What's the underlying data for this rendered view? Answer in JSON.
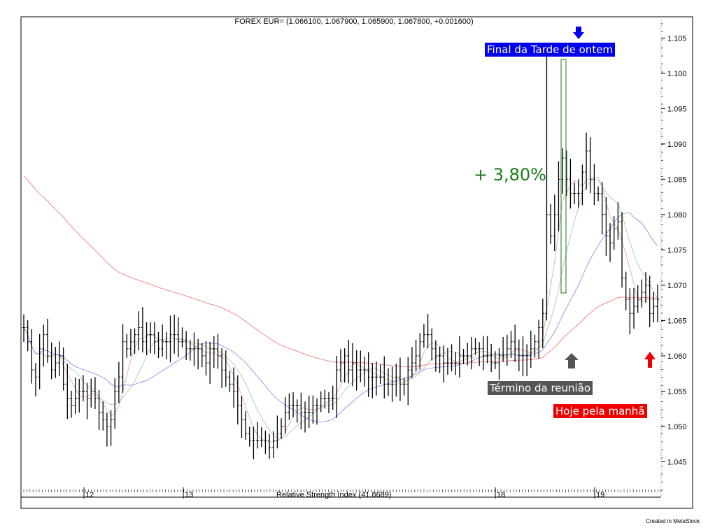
{
  "header": {
    "title": "FOREX EUR= (1.066100, 1.067900, 1.065900, 1.067800, +0.001600)"
  },
  "annotations": {
    "gain": "+ 3,80%",
    "label_final": "Final da Tarde de ontem",
    "label_termino": "Término da reunião",
    "label_hoje": "Hoje pela manhã"
  },
  "indicator_label": "Relative Strength Index (41.8689)",
  "credit": "Created in MetaStock",
  "colors": {
    "gain": "#1a7a1a",
    "final_bg": "#0000ee",
    "termino_bg": "#555555",
    "hoje_bg": "#ee0000",
    "arrow_blue": "#0000ee",
    "arrow_gray": "#555555",
    "arrow_red": "#ee0000"
  },
  "chart_data": {
    "type": "line",
    "subtype": "ohlc_bar",
    "ylim": [
      1.04,
      1.108
    ],
    "y_ticks": [
      "1.045",
      "1.050",
      "1.055",
      "1.060",
      "1.065",
      "1.070",
      "1.075",
      "1.080",
      "1.085",
      "1.090",
      "1.095",
      "1.100",
      "1.105"
    ],
    "x_tick_labels": [
      "12",
      "13",
      "18",
      "19"
    ],
    "series": [
      {
        "role": "price_close",
        "values": [
          1.064,
          1.062,
          1.058,
          1.057,
          1.061,
          1.063,
          1.06,
          1.058,
          1.059,
          1.06,
          1.056,
          1.054,
          1.053,
          1.054,
          1.055,
          1.055,
          1.054,
          1.055,
          1.054,
          1.052,
          1.051,
          1.05,
          1.051,
          1.055,
          1.057,
          1.062,
          1.061,
          1.062,
          1.063,
          1.064,
          1.062,
          1.063,
          1.063,
          1.062,
          1.061,
          1.062,
          1.062,
          1.063,
          1.063,
          1.062,
          1.062,
          1.061,
          1.061,
          1.061,
          1.061,
          1.06,
          1.059,
          1.061,
          1.061,
          1.06,
          1.058,
          1.057,
          1.056,
          1.055,
          1.053,
          1.051,
          1.049,
          1.048,
          1.048,
          1.048,
          1.048,
          1.048,
          1.047,
          1.048,
          1.049,
          1.05,
          1.052,
          1.053,
          1.053,
          1.053,
          1.052,
          1.052,
          1.052,
          1.053,
          1.053,
          1.054,
          1.054,
          1.054,
          1.054,
          1.058,
          1.059,
          1.06,
          1.058,
          1.059,
          1.058,
          1.058,
          1.058,
          1.057,
          1.057,
          1.057,
          1.057,
          1.056,
          1.056,
          1.056,
          1.057,
          1.056,
          1.056,
          1.058,
          1.059,
          1.06,
          1.062,
          1.063,
          1.063,
          1.061,
          1.06,
          1.06,
          1.059,
          1.059,
          1.059,
          1.059,
          1.06,
          1.06,
          1.06,
          1.061,
          1.061,
          1.061,
          1.06,
          1.06,
          1.059,
          1.059,
          1.06,
          1.06,
          1.061,
          1.062,
          1.061,
          1.06,
          1.06,
          1.06,
          1.061,
          1.062,
          1.064,
          1.066,
          1.08,
          1.077,
          1.08,
          1.085,
          1.088,
          1.085,
          1.083,
          1.083,
          1.083,
          1.086,
          1.089,
          1.085,
          1.083,
          1.083,
          1.08,
          1.077,
          1.076,
          1.078,
          1.079,
          1.071,
          1.068,
          1.066,
          1.067,
          1.068,
          1.069,
          1.07,
          1.066,
          1.067,
          1.068
        ]
      }
    ]
  }
}
